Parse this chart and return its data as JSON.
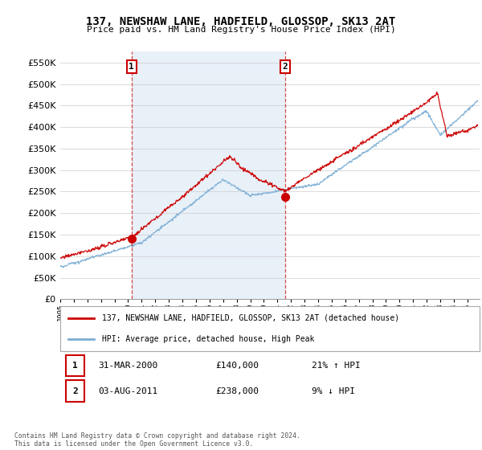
{
  "title": "137, NEWSHAW LANE, HADFIELD, GLOSSOP, SK13 2AT",
  "subtitle": "Price paid vs. HM Land Registry's House Price Index (HPI)",
  "legend_line1": "137, NEWSHAW LANE, HADFIELD, GLOSSOP, SK13 2AT (detached house)",
  "legend_line2": "HPI: Average price, detached house, High Peak",
  "annotation1_date": "31-MAR-2000",
  "annotation1_price": "£140,000",
  "annotation1_hpi": "21% ↑ HPI",
  "annotation2_date": "03-AUG-2011",
  "annotation2_price": "£238,000",
  "annotation2_hpi": "9% ↓ HPI",
  "footer": "Contains HM Land Registry data © Crown copyright and database right 2024.\nThis data is licensed under the Open Government Licence v3.0.",
  "red_color": "#cc0000",
  "blue_color": "#7aadd4",
  "vline_color": "#cc0000",
  "bg_highlight": "#e8f0f8",
  "ylim": [
    0,
    575000
  ],
  "yticks": [
    0,
    50000,
    100000,
    150000,
    200000,
    250000,
    300000,
    350000,
    400000,
    450000,
    500000,
    550000
  ],
  "sale1_x": 2000.25,
  "sale1_y": 140000,
  "sale2_x": 2011.58,
  "sale2_y": 238000,
  "xmin": 1995,
  "xmax": 2025.9
}
